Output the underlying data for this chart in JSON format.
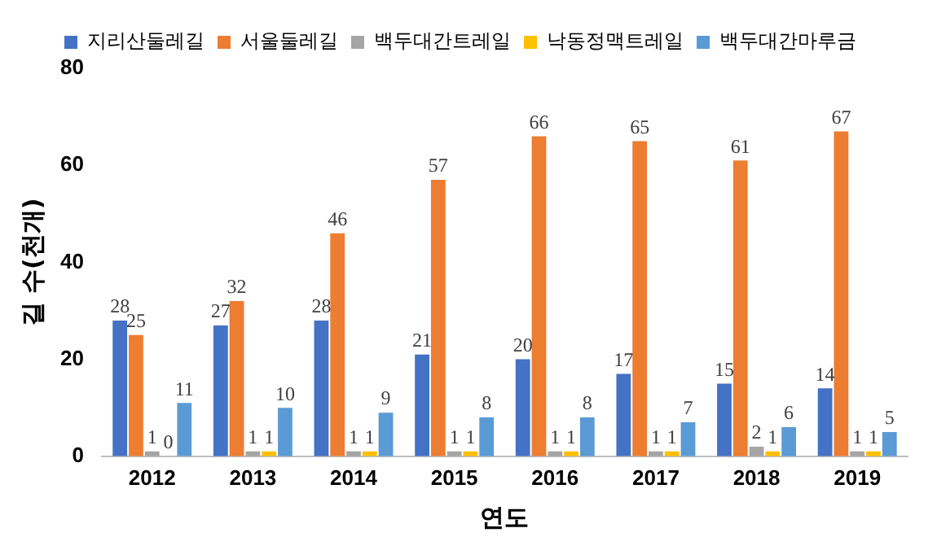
{
  "chart_data": {
    "type": "bar",
    "xlabel": "연도",
    "ylabel": "길 수(천개)",
    "categories": [
      "2012",
      "2013",
      "2014",
      "2015",
      "2016",
      "2017",
      "2018",
      "2019"
    ],
    "series": [
      {
        "name": "지리산둘레길",
        "color": "#4472c4",
        "values": [
          28,
          27,
          28,
          21,
          20,
          17,
          15,
          14
        ]
      },
      {
        "name": "서울둘레길",
        "color": "#ed7d31",
        "values": [
          25,
          32,
          46,
          57,
          66,
          65,
          61,
          67
        ]
      },
      {
        "name": "백두대간트레일",
        "color": "#a5a5a5",
        "values": [
          1,
          1,
          1,
          1,
          1,
          1,
          2,
          1
        ]
      },
      {
        "name": "낙동정맥트레일",
        "color": "#ffc000",
        "values": [
          0,
          1,
          1,
          1,
          1,
          1,
          1,
          1
        ]
      },
      {
        "name": "백두대간마루금",
        "color": "#5b9bd5",
        "values": [
          11,
          10,
          9,
          8,
          8,
          7,
          6,
          5
        ]
      }
    ],
    "ylim": [
      0,
      80
    ],
    "yticks": [
      0,
      20,
      40,
      60,
      80
    ],
    "grid": false,
    "legend": "top",
    "data_labels": true
  }
}
